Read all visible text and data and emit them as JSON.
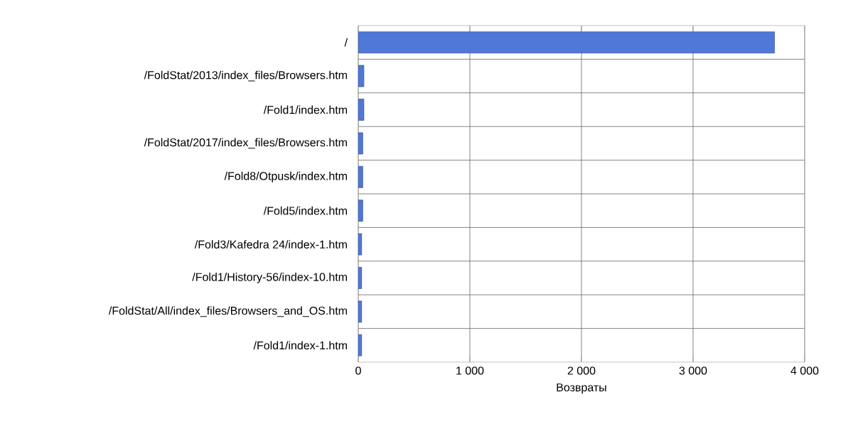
{
  "chart_data": {
    "type": "bar",
    "orientation": "horizontal",
    "xlabel": "Возвраты",
    "categories": [
      "/",
      "/FoldStat/2013/index_files/Browsers.htm",
      "/Fold1/index.htm",
      "/FoldStat/2017/index_files/Browsers.htm",
      "/Fold8/Otpusk/index.htm",
      "/Fold5/index.htm",
      "/Fold3/Kafedra 24/index-1.htm",
      "/Fold1/History-56/index-10.htm",
      "/FoldStat/All/index_files/Browsers_and_OS.htm",
      "/Fold1/index-1.htm"
    ],
    "values": [
      3730,
      50,
      50,
      40,
      40,
      40,
      30,
      30,
      30,
      30
    ],
    "color": "#4f78d8",
    "xlim": [
      0,
      4000
    ],
    "xticks": [
      {
        "value": 0,
        "label": "0"
      },
      {
        "value": 1000,
        "label": "1 000"
      },
      {
        "value": 2000,
        "label": "2 000"
      },
      {
        "value": 3000,
        "label": "3 000"
      },
      {
        "value": 4000,
        "label": "4 000"
      }
    ],
    "grid": true
  }
}
